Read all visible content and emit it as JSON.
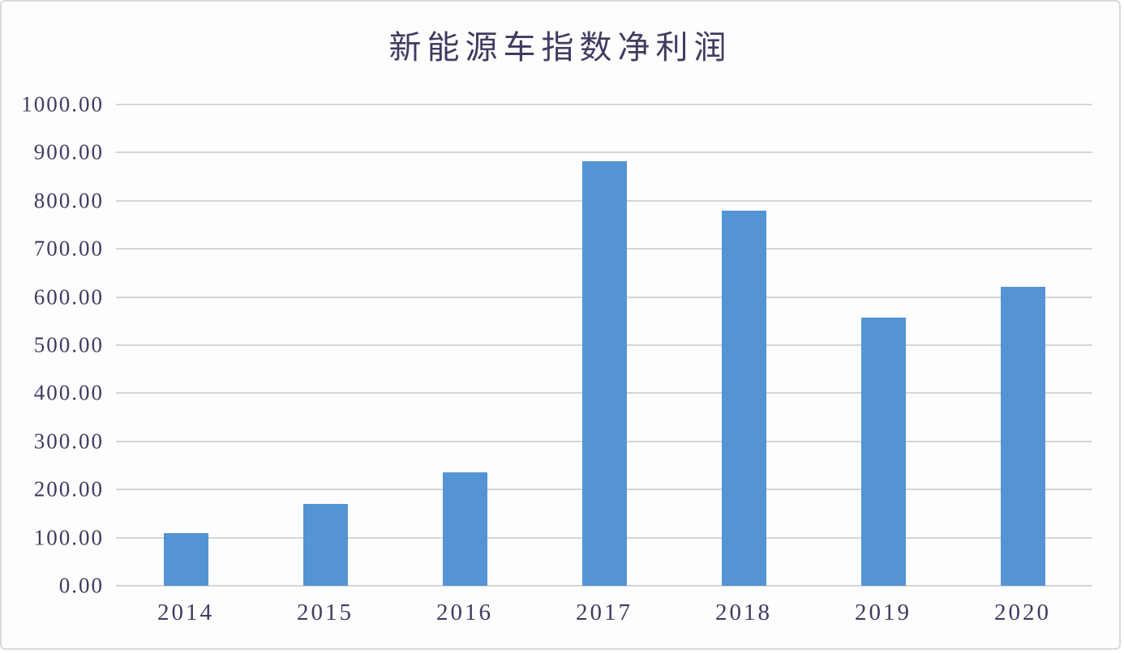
{
  "chart": {
    "title": "新能源车指数净利润"
  },
  "chart_data": {
    "type": "bar",
    "title": "新能源车指数净利润",
    "categories": [
      "2014",
      "2015",
      "2016",
      "2017",
      "2018",
      "2019",
      "2020"
    ],
    "values": [
      110,
      170,
      236,
      882,
      780,
      558,
      622
    ],
    "xlabel": "",
    "ylabel": "",
    "ylim": [
      0,
      1000
    ],
    "ytick_step": 100,
    "ytick_labels": [
      "1000.00",
      "900.00",
      "800.00",
      "700.00",
      "600.00",
      "500.00",
      "400.00",
      "300.00",
      "200.00",
      "100.00",
      "0.00"
    ],
    "grid": true,
    "legend": false,
    "bar_color": "#5494d4",
    "text_color": "#3e3c60",
    "gridline_color": "#d6d4d8"
  }
}
